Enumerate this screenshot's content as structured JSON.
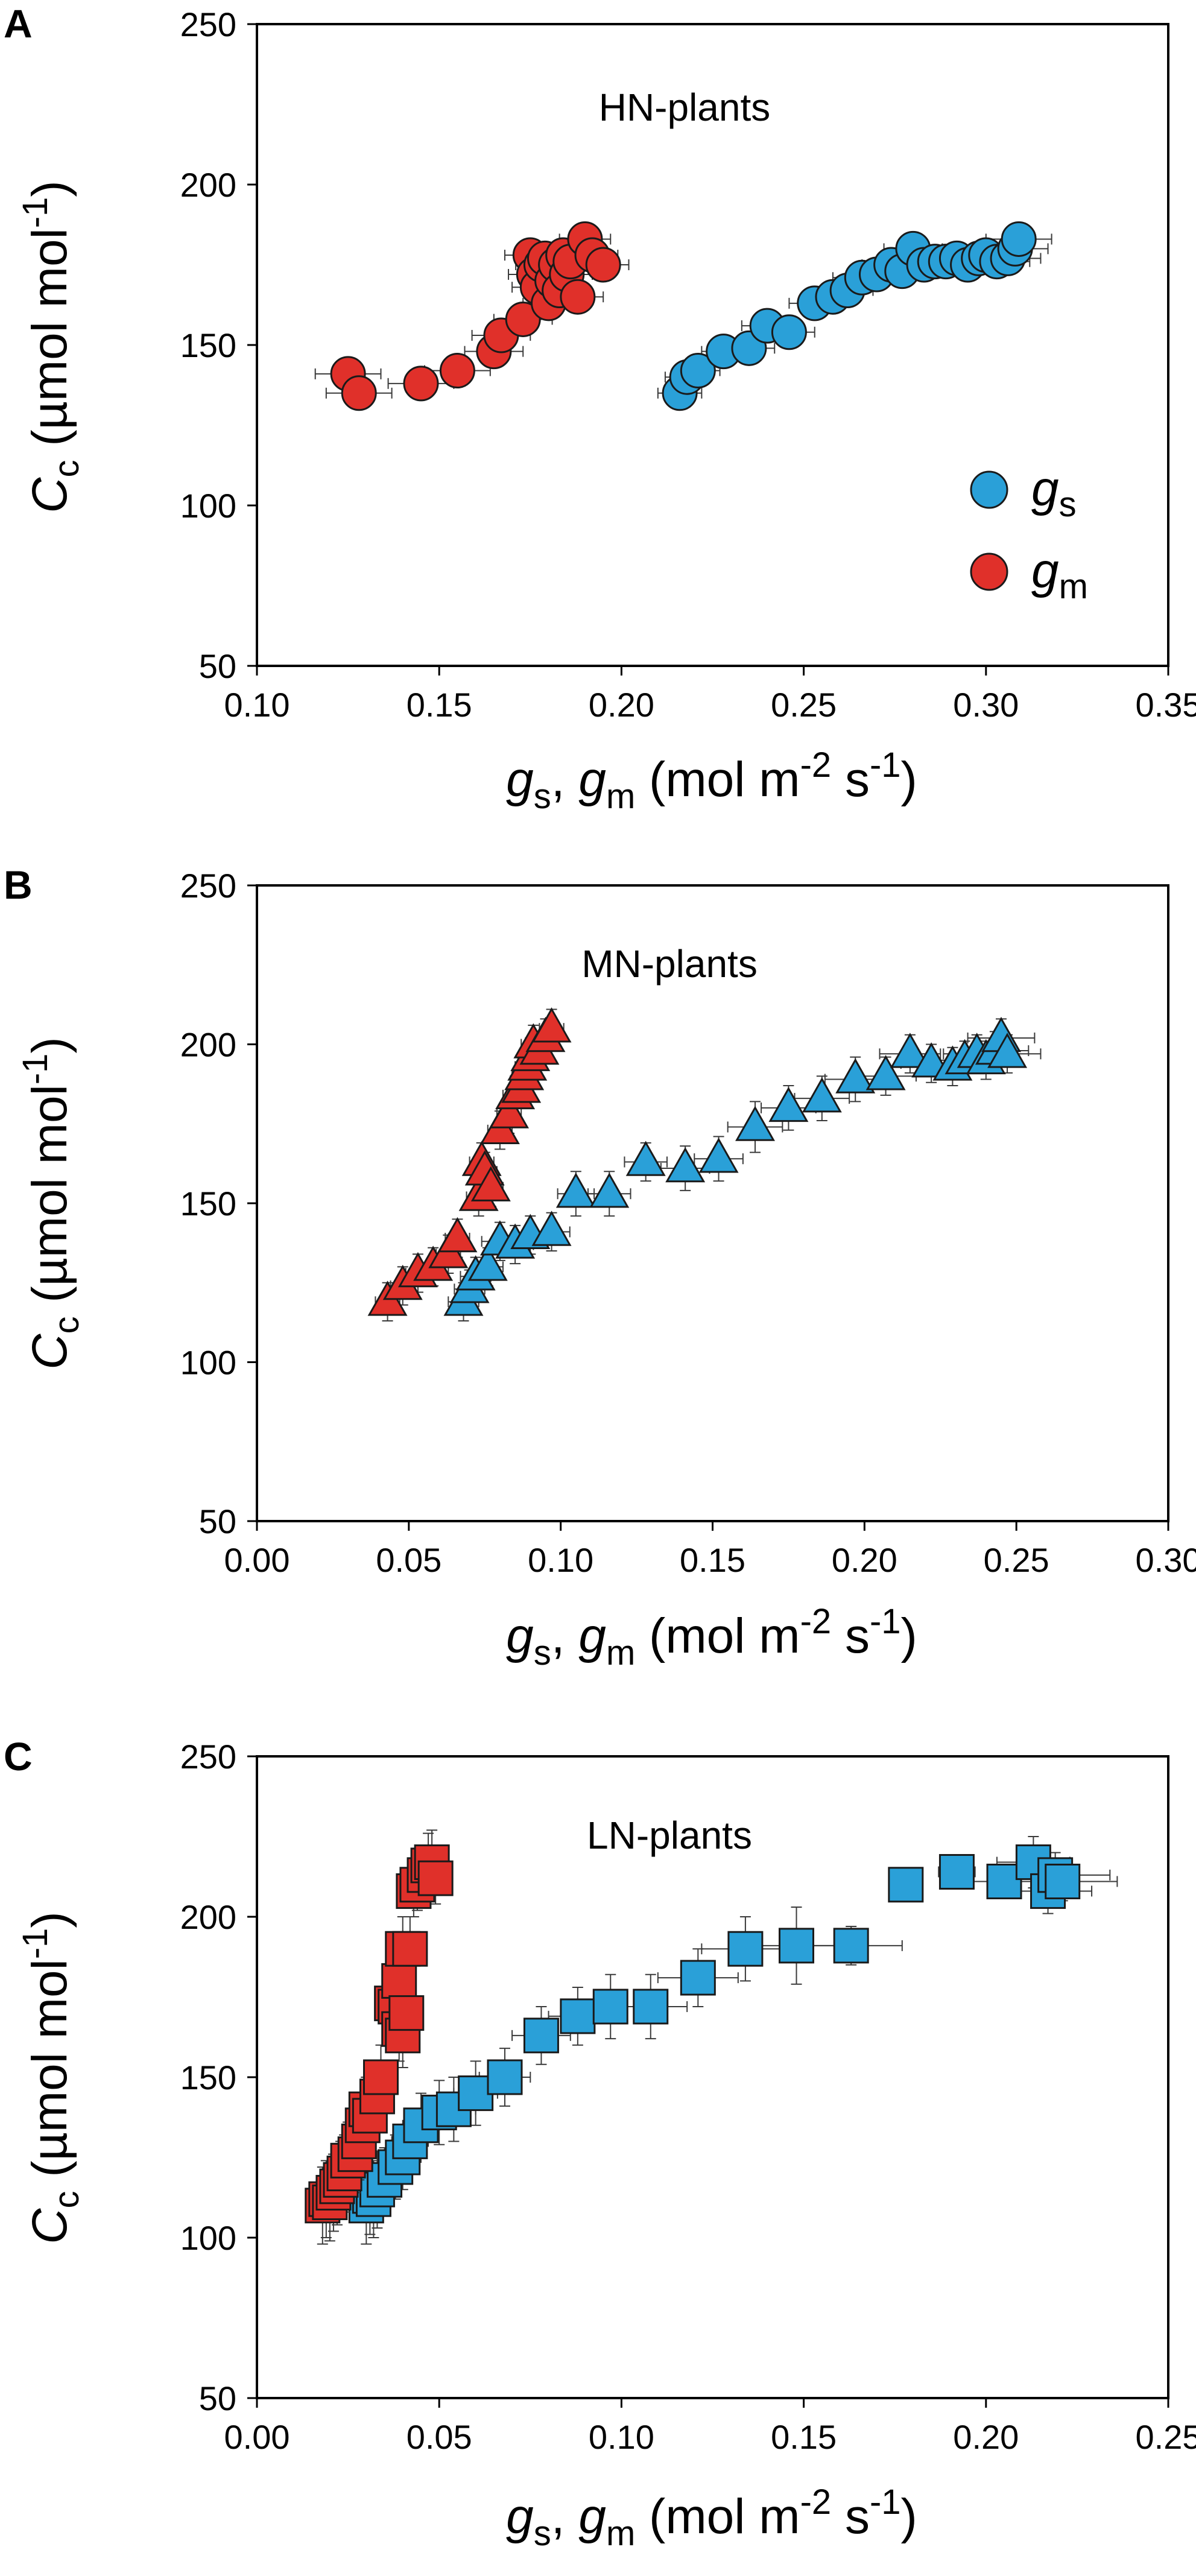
{
  "colors": {
    "gs": "#2aa0d8",
    "gm": "#e0302a",
    "marker_stroke": "#1a1a1a",
    "errorbar": "#3a3a3a"
  },
  "figure": {
    "x_axis_title": {
      "g": "g",
      "s_sub": "s",
      "comma": ", ",
      "m_sub": "m",
      "units_pre": " (mol m",
      "exp1": "-2",
      "units_mid": " s",
      "exp2": "-1",
      "units_post": ")"
    },
    "y_axis_title": {
      "c": "C",
      "c_sub": "c",
      "units_pre": " (µmol mol",
      "exp": "-1",
      "units_post": ")"
    }
  },
  "chart_data": [
    {
      "panel": "A",
      "type": "scatter",
      "title": "HN-plants",
      "marker": "circle",
      "xlim": [
        0.1,
        0.35
      ],
      "ylim": [
        50,
        250
      ],
      "xticks": [
        "0.10",
        "0.15",
        "0.20",
        "0.25",
        "0.30",
        "0.35"
      ],
      "yticks": [
        "50",
        "100",
        "150",
        "200",
        "250"
      ],
      "legend": {
        "position": "right-middle",
        "entries": [
          {
            "series": "gs",
            "symbol": "g",
            "sub": "s"
          },
          {
            "series": "gm",
            "symbol": "g",
            "sub": "m"
          }
        ]
      },
      "series": [
        {
          "name": "gs",
          "color": "#2aa0d8",
          "points": [
            [
              0.216,
              135,
              0.006,
              3
            ],
            [
              0.218,
              140,
              0.006,
              4
            ],
            [
              0.221,
              142,
              0.006,
              4
            ],
            [
              0.228,
              148,
              0.006,
              3
            ],
            [
              0.235,
              149,
              0.007,
              4
            ],
            [
              0.24,
              156,
              0.007,
              4
            ],
            [
              0.246,
              154,
              0.007,
              4
            ],
            [
              0.253,
              163,
              0.007,
              4
            ],
            [
              0.258,
              165,
              0.007,
              4
            ],
            [
              0.262,
              167,
              0.007,
              4
            ],
            [
              0.266,
              171,
              0.008,
              4
            ],
            [
              0.27,
              172,
              0.008,
              4
            ],
            [
              0.274,
              175,
              0.008,
              4
            ],
            [
              0.277,
              173,
              0.008,
              4
            ],
            [
              0.28,
              180,
              0.008,
              4
            ],
            [
              0.283,
              175,
              0.008,
              4
            ],
            [
              0.286,
              176,
              0.008,
              4
            ],
            [
              0.289,
              176,
              0.008,
              4
            ],
            [
              0.292,
              177,
              0.009,
              4
            ],
            [
              0.295,
              175,
              0.009,
              4
            ],
            [
              0.298,
              177,
              0.009,
              4
            ],
            [
              0.3,
              178,
              0.009,
              4
            ],
            [
              0.303,
              176,
              0.009,
              4
            ],
            [
              0.306,
              177,
              0.009,
              4
            ],
            [
              0.308,
              180,
              0.009,
              4
            ],
            [
              0.309,
              183,
              0.009,
              4
            ]
          ]
        },
        {
          "name": "gm",
          "color": "#e0302a",
          "points": [
            [
              0.125,
              141,
              0.009,
              4
            ],
            [
              0.128,
              135,
              0.009,
              4
            ],
            [
              0.145,
              138,
              0.009,
              4
            ],
            [
              0.155,
              142,
              0.009,
              4
            ],
            [
              0.165,
              148,
              0.008,
              4
            ],
            [
              0.167,
              153,
              0.008,
              4
            ],
            [
              0.173,
              158,
              0.008,
              5
            ],
            [
              0.175,
              178,
              0.007,
              5
            ],
            [
              0.176,
              172,
              0.007,
              5
            ],
            [
              0.177,
              168,
              0.007,
              5
            ],
            [
              0.178,
              175,
              0.007,
              5
            ],
            [
              0.179,
              177,
              0.007,
              5
            ],
            [
              0.18,
              163,
              0.007,
              5
            ],
            [
              0.181,
              170,
              0.007,
              5
            ],
            [
              0.182,
              175,
              0.007,
              5
            ],
            [
              0.183,
              167,
              0.007,
              5
            ],
            [
              0.184,
              178,
              0.007,
              5
            ],
            [
              0.185,
              172,
              0.007,
              5
            ],
            [
              0.186,
              176,
              0.007,
              5
            ],
            [
              0.188,
              165,
              0.007,
              5
            ],
            [
              0.19,
              183,
              0.007,
              5
            ],
            [
              0.192,
              178,
              0.007,
              5
            ],
            [
              0.195,
              175,
              0.007,
              5
            ]
          ]
        }
      ]
    },
    {
      "panel": "B",
      "type": "scatter",
      "title": "MN-plants",
      "marker": "triangle",
      "xlim": [
        0.0,
        0.3
      ],
      "ylim": [
        50,
        250
      ],
      "xticks": [
        "0.00",
        "0.05",
        "0.10",
        "0.15",
        "0.20",
        "0.25",
        "0.30"
      ],
      "yticks": [
        "50",
        "100",
        "150",
        "200",
        "250"
      ],
      "series": [
        {
          "name": "gs",
          "color": "#2aa0d8",
          "points": [
            [
              0.068,
              119,
              0.005,
              6
            ],
            [
              0.07,
              123,
              0.005,
              6
            ],
            [
              0.072,
              127,
              0.005,
              6
            ],
            [
              0.076,
              130,
              0.005,
              6
            ],
            [
              0.08,
              138,
              0.006,
              6
            ],
            [
              0.085,
              137,
              0.006,
              6
            ],
            [
              0.09,
              140,
              0.006,
              6
            ],
            [
              0.097,
              141,
              0.006,
              6
            ],
            [
              0.105,
              153,
              0.006,
              7
            ],
            [
              0.116,
              153,
              0.007,
              7
            ],
            [
              0.128,
              163,
              0.007,
              6
            ],
            [
              0.141,
              161,
              0.008,
              7
            ],
            [
              0.152,
              164,
              0.008,
              7
            ],
            [
              0.164,
              174,
              0.009,
              8
            ],
            [
              0.175,
              180,
              0.009,
              7
            ],
            [
              0.186,
              183,
              0.009,
              7
            ],
            [
              0.197,
              189,
              0.01,
              7
            ],
            [
              0.207,
              190,
              0.01,
              6
            ],
            [
              0.215,
              197,
              0.01,
              6
            ],
            [
              0.222,
              194,
              0.01,
              6
            ],
            [
              0.229,
              193,
              0.011,
              6
            ],
            [
              0.233,
              195,
              0.011,
              6
            ],
            [
              0.237,
              197,
              0.011,
              6
            ],
            [
              0.24,
              195,
              0.011,
              6
            ],
            [
              0.243,
              198,
              0.011,
              6
            ],
            [
              0.245,
              202,
              0.011,
              6
            ],
            [
              0.247,
              197,
              0.011,
              6
            ]
          ]
        },
        {
          "name": "gm",
          "color": "#e0302a",
          "points": [
            [
              0.043,
              119,
              0.004,
              6
            ],
            [
              0.048,
              124,
              0.004,
              6
            ],
            [
              0.053,
              128,
              0.004,
              6
            ],
            [
              0.058,
              130,
              0.004,
              6
            ],
            [
              0.063,
              134,
              0.004,
              6
            ],
            [
              0.066,
              139,
              0.004,
              6
            ],
            [
              0.073,
              152,
              0.004,
              6
            ],
            [
              0.074,
              163,
              0.004,
              6
            ],
            [
              0.075,
              160,
              0.004,
              6
            ],
            [
              0.077,
              155,
              0.004,
              6
            ],
            [
              0.08,
              173,
              0.004,
              6
            ],
            [
              0.083,
              178,
              0.004,
              6
            ],
            [
              0.085,
              184,
              0.004,
              6
            ],
            [
              0.087,
              186,
              0.004,
              6
            ],
            [
              0.088,
              190,
              0.004,
              6
            ],
            [
              0.089,
              193,
              0.004,
              6
            ],
            [
              0.09,
              196,
              0.004,
              6
            ],
            [
              0.091,
              200,
              0.004,
              6
            ],
            [
              0.093,
              198,
              0.004,
              6
            ],
            [
              0.095,
              202,
              0.004,
              6
            ],
            [
              0.097,
              205,
              0.004,
              6
            ]
          ]
        }
      ]
    },
    {
      "panel": "C",
      "type": "scatter",
      "title": "LN-plants",
      "marker": "square",
      "xlim": [
        0.0,
        0.25
      ],
      "ylim": [
        50,
        250
      ],
      "xticks": [
        "0.00",
        "0.05",
        "0.10",
        "0.15",
        "0.20",
        "0.25"
      ],
      "yticks": [
        "50",
        "100",
        "150",
        "200",
        "250"
      ],
      "series": [
        {
          "name": "gs",
          "color": "#2aa0d8",
          "points": [
            [
              0.03,
              110,
              0.004,
              12
            ],
            [
              0.031,
              113,
              0.004,
              12
            ],
            [
              0.032,
              112,
              0.004,
              12
            ],
            [
              0.033,
              115,
              0.004,
              12
            ],
            [
              0.035,
              118,
              0.004,
              10
            ],
            [
              0.038,
              122,
              0.004,
              10
            ],
            [
              0.04,
              125,
              0.005,
              10
            ],
            [
              0.042,
              130,
              0.005,
              10
            ],
            [
              0.045,
              135,
              0.005,
              10
            ],
            [
              0.05,
              139,
              0.005,
              10
            ],
            [
              0.054,
              140,
              0.006,
              10
            ],
            [
              0.06,
              145,
              0.006,
              10
            ],
            [
              0.068,
              150,
              0.007,
              9
            ],
            [
              0.078,
              163,
              0.008,
              9
            ],
            [
              0.088,
              169,
              0.008,
              9
            ],
            [
              0.097,
              172,
              0.009,
              10
            ],
            [
              0.108,
              172,
              0.01,
              10
            ],
            [
              0.121,
              181,
              0.011,
              9
            ],
            [
              0.134,
              190,
              0.012,
              10
            ],
            [
              0.148,
              191,
              0.013,
              12
            ],
            [
              0.163,
              191,
              0.014,
              6
            ],
            [
              0.178,
              210,
              0.004,
              5
            ],
            [
              0.192,
              214,
              0.005,
              4
            ],
            [
              0.205,
              211,
              0.01,
              5
            ],
            [
              0.213,
              217,
              0.01,
              8
            ],
            [
              0.217,
              208,
              0.012,
              7
            ],
            [
              0.219,
              213,
              0.015,
              7
            ],
            [
              0.221,
              211,
              0.015,
              6
            ]
          ]
        },
        {
          "name": "gm",
          "color": "#e0302a",
          "points": [
            [
              0.018,
              110,
              0.002,
              12
            ],
            [
              0.019,
              112,
              0.002,
              12
            ],
            [
              0.02,
              111,
              0.002,
              12
            ],
            [
              0.021,
              114,
              0.002,
              12
            ],
            [
              0.022,
              116,
              0.002,
              12
            ],
            [
              0.023,
              118,
              0.002,
              12
            ],
            [
              0.024,
              120,
              0.002,
              12
            ],
            [
              0.025,
              124,
              0.002,
              12
            ],
            [
              0.027,
              126,
              0.002,
              12
            ],
            [
              0.028,
              130,
              0.002,
              12
            ],
            [
              0.029,
              135,
              0.002,
              10
            ],
            [
              0.03,
              140,
              0.002,
              10
            ],
            [
              0.031,
              138,
              0.002,
              10
            ],
            [
              0.033,
              144,
              0.002,
              10
            ],
            [
              0.034,
              150,
              0.002,
              10
            ],
            [
              0.037,
              173,
              0.002,
              10
            ],
            [
              0.038,
              172,
              0.002,
              10
            ],
            [
              0.039,
              180,
              0.002,
              10
            ],
            [
              0.039,
              165,
              0.002,
              10
            ],
            [
              0.04,
              163,
              0.002,
              10
            ],
            [
              0.04,
              190,
              0.002,
              10
            ],
            [
              0.041,
              170,
              0.002,
              10
            ],
            [
              0.042,
              190,
              0.002,
              10
            ],
            [
              0.043,
              208,
              0.002,
              8
            ],
            [
              0.044,
              210,
              0.002,
              8
            ],
            [
              0.046,
              213,
              0.002,
              8
            ],
            [
              0.047,
              216,
              0.002,
              10
            ],
            [
              0.048,
              217,
              0.002,
              10
            ],
            [
              0.049,
              212,
              0.002,
              8
            ]
          ]
        }
      ]
    }
  ]
}
